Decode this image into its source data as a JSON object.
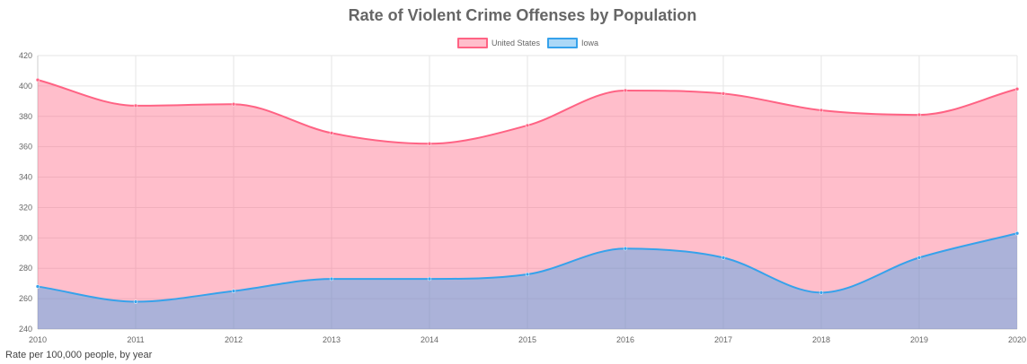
{
  "chart_data": {
    "type": "area",
    "title": "Rate of Violent Crime Offenses by Population",
    "x": [
      "2010",
      "2011",
      "2012",
      "2013",
      "2014",
      "2015",
      "2016",
      "2017",
      "2018",
      "2019",
      "2020"
    ],
    "ylim": [
      240,
      420
    ],
    "yticks": [
      240,
      260,
      280,
      300,
      320,
      340,
      360,
      380,
      400,
      420
    ],
    "grid": true,
    "legend_position": "top-center",
    "series": [
      {
        "name": "United States",
        "values": [
          404,
          387,
          388,
          369,
          362,
          374,
          397,
          395,
          384,
          381,
          398
        ],
        "line_color": "#ff6384",
        "fill_color": "rgba(255,99,132,0.42)"
      },
      {
        "name": "Iowa",
        "values": [
          268,
          258,
          265,
          273,
          273,
          276,
          293,
          287,
          264,
          287,
          303
        ],
        "line_color": "#36a2eb",
        "fill_color": "rgba(54,162,235,0.42)"
      }
    ],
    "caption": "Rate per 100,000 people, by year"
  }
}
